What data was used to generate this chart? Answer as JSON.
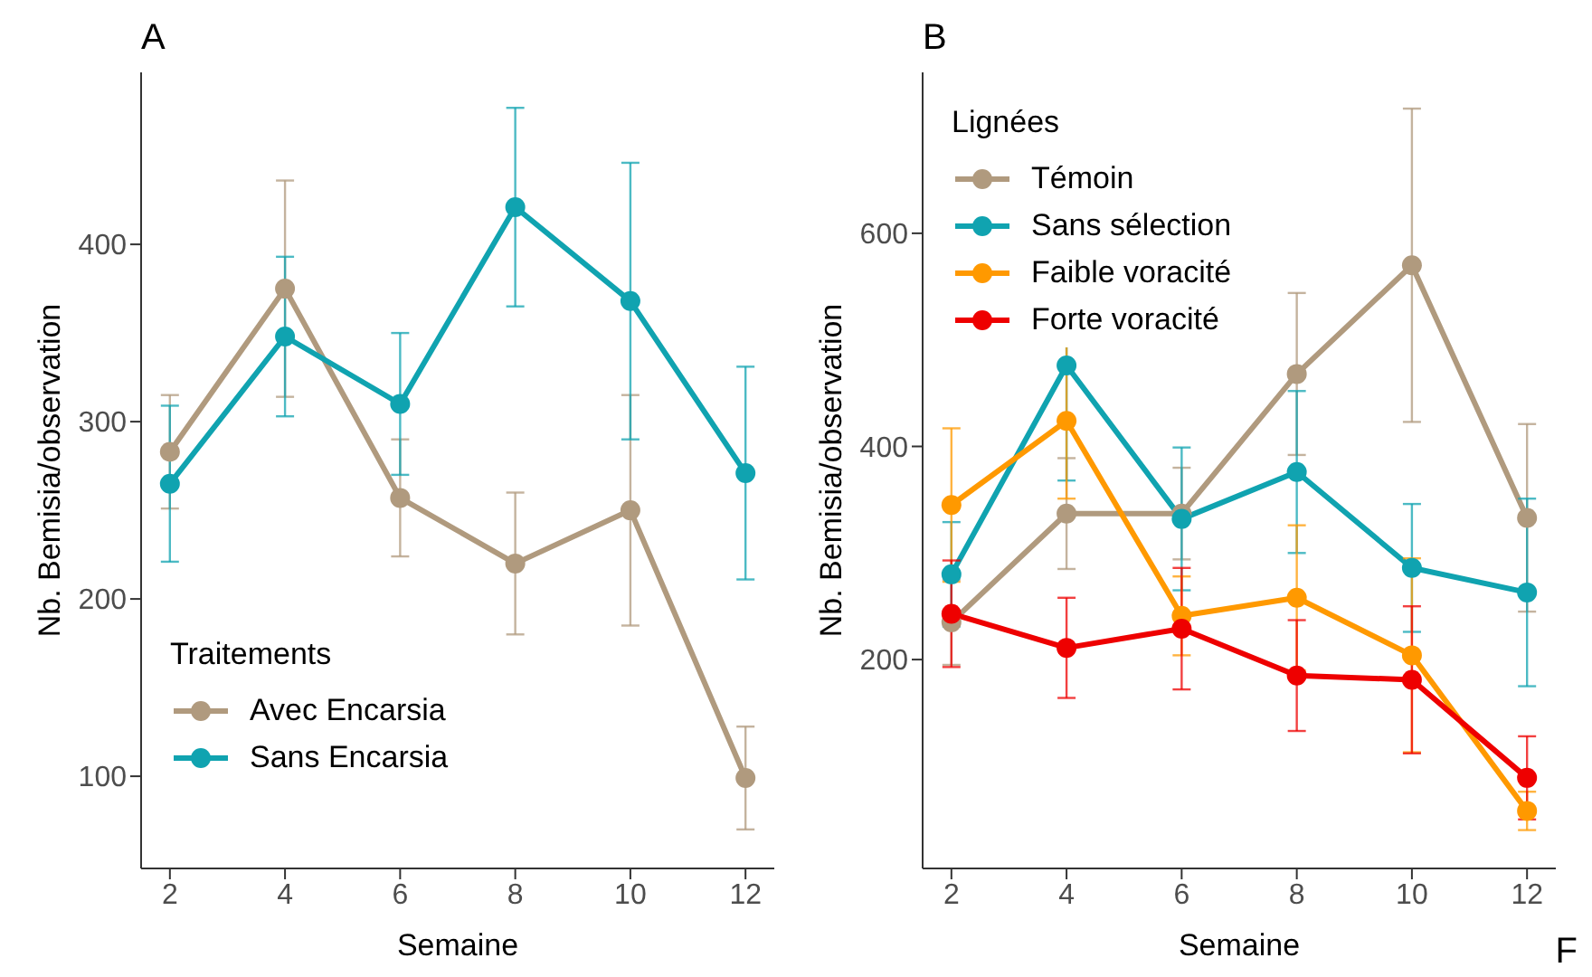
{
  "chart_data": [
    {
      "type": "line",
      "title": "A",
      "xlabel": "Semaine",
      "ylabel": "Nb. Bemisia/observation",
      "legend_title": "Traitements",
      "x": [
        2,
        4,
        6,
        8,
        10,
        12
      ],
      "xlim": [
        1.5,
        12.5
      ],
      "xticks": [
        2,
        4,
        6,
        8,
        10,
        12
      ],
      "ylim": [
        48,
        497
      ],
      "yticks": [
        100,
        200,
        300,
        400
      ],
      "legend": "bottom left",
      "marker": "circle",
      "line_style": "solid",
      "series": [
        {
          "name": "Avec Encarsia",
          "color": "#b09a7e",
          "values": [
            283,
            375,
            257,
            220,
            250,
            99
          ],
          "errors": [
            32,
            61,
            33,
            40,
            65,
            29
          ]
        },
        {
          "name": "Sans Encarsia",
          "color": "#10a3b0",
          "values": [
            265,
            348,
            310,
            421,
            368,
            271
          ],
          "errors": [
            44,
            45,
            40,
            56,
            78,
            60
          ]
        }
      ]
    },
    {
      "type": "line",
      "title": "B",
      "xlabel": "Semaine",
      "ylabel": "Nb. Bemisia/observation",
      "legend_title": "Lignées",
      "annotations": [
        "F"
      ],
      "x": [
        2,
        4,
        6,
        8,
        10,
        12
      ],
      "xlim": [
        1.5,
        12.5
      ],
      "xticks": [
        2,
        4,
        6,
        8,
        10,
        12
      ],
      "ylim": [
        4,
        751
      ],
      "yticks": [
        200,
        400,
        600
      ],
      "legend": "top left",
      "marker": "circle",
      "line_style": "solid",
      "series": [
        {
          "name": "Témoin",
          "color": "#b09a7e",
          "values": [
            235,
            337,
            337,
            468,
            570,
            333
          ],
          "errors": [
            40,
            52,
            43,
            76,
            147,
            88
          ]
        },
        {
          "name": "Sans sélection",
          "color": "#10a3b0",
          "values": [
            280,
            476,
            332,
            376,
            286,
            263
          ],
          "errors": [
            49,
            108,
            67,
            76,
            60,
            88
          ]
        },
        {
          "name": "Faible voracité",
          "color": "#ff9900",
          "values": [
            345,
            424,
            241,
            258,
            204,
            58
          ],
          "errors": [
            72,
            73,
            37,
            68,
            91,
            18
          ]
        },
        {
          "name": "Forte voracité",
          "color": "#ee0000",
          "values": [
            243,
            211,
            229,
            185,
            181,
            89
          ],
          "errors": [
            50,
            47,
            57,
            52,
            69,
            39
          ]
        }
      ]
    }
  ]
}
